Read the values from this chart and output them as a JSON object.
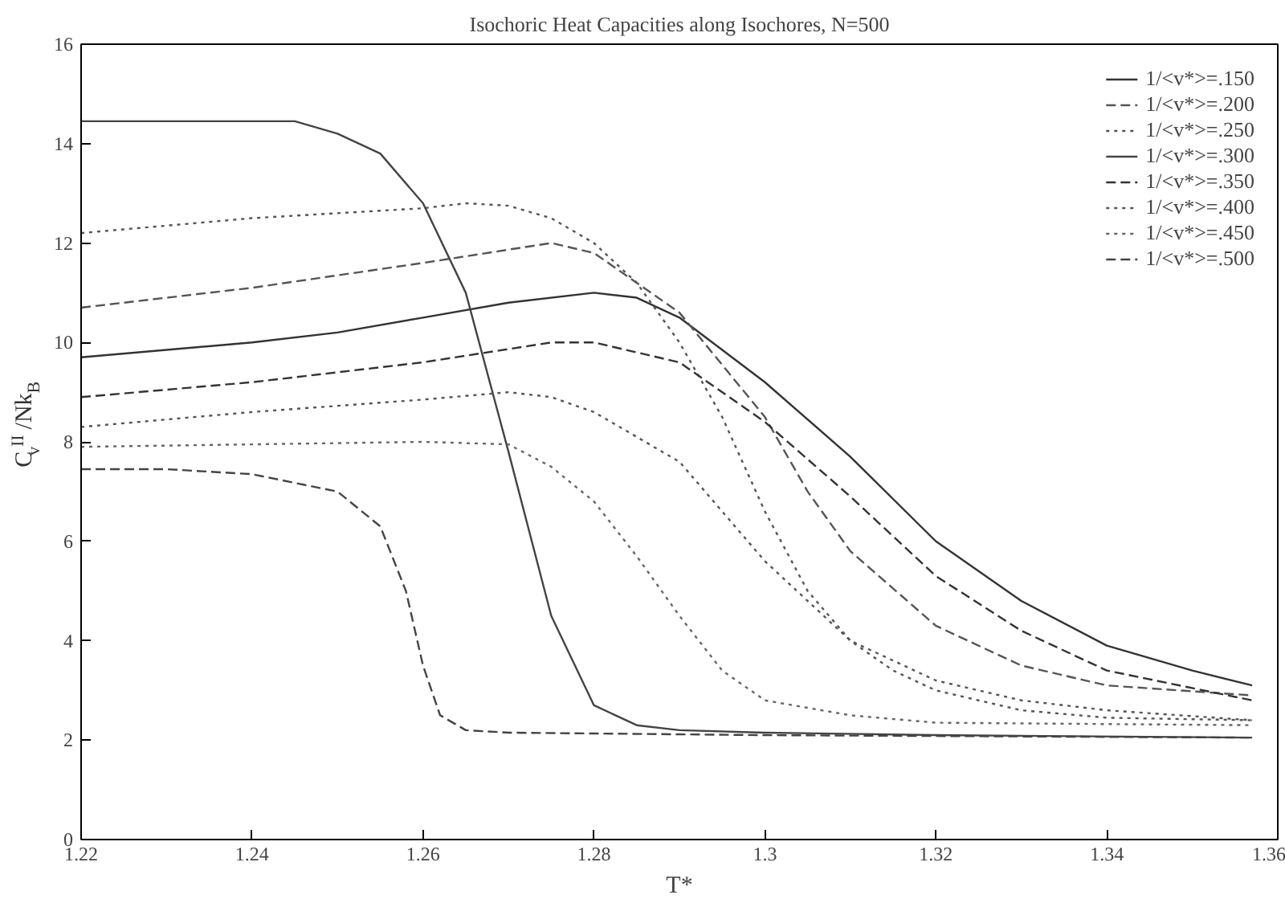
{
  "chart_data": {
    "type": "line",
    "title": "Isochoric Heat Capacities along Isochores, N=500",
    "xlabel": "T*",
    "ylabel": "C$_{v}$$^{II}$/Nk$_{B}$",
    "xlim": [
      1.22,
      1.36
    ],
    "ylim": [
      0,
      16
    ],
    "xticks": [
      1.22,
      1.24,
      1.26,
      1.28,
      1.3,
      1.32,
      1.34,
      1.36
    ],
    "yticks": [
      0,
      2,
      4,
      6,
      8,
      10,
      12,
      14,
      16
    ],
    "grid": false,
    "legend": "top right",
    "marker": "none",
    "series": [
      {
        "name": "1/<v*>=.150",
        "color": "#333333",
        "line_style": "solid",
        "x": [
          1.22,
          1.24,
          1.25,
          1.26,
          1.27,
          1.28,
          1.285,
          1.29,
          1.3,
          1.31,
          1.32,
          1.33,
          1.34,
          1.35,
          1.357
        ],
        "values": [
          9.7,
          10.0,
          10.2,
          10.5,
          10.8,
          11.0,
          10.9,
          10.5,
          9.2,
          7.7,
          6.0,
          4.8,
          3.9,
          3.4,
          3.1
        ]
      },
      {
        "name": "1/<v*>=.200",
        "color": "#555555",
        "line_style": "dashed",
        "x": [
          1.22,
          1.24,
          1.26,
          1.275,
          1.28,
          1.29,
          1.3,
          1.305,
          1.31,
          1.32,
          1.33,
          1.34,
          1.357
        ],
        "values": [
          10.7,
          11.1,
          11.6,
          12.0,
          11.8,
          10.6,
          8.5,
          7.0,
          5.8,
          4.3,
          3.5,
          3.1,
          2.9
        ]
      },
      {
        "name": "1/<v*>=.250",
        "color": "#555555",
        "line_style": "dotted",
        "x": [
          1.22,
          1.24,
          1.26,
          1.265,
          1.27,
          1.275,
          1.28,
          1.285,
          1.29,
          1.295,
          1.3,
          1.305,
          1.31,
          1.315,
          1.32,
          1.33,
          1.34,
          1.357
        ],
        "values": [
          12.2,
          12.5,
          12.7,
          12.8,
          12.75,
          12.5,
          12.0,
          11.2,
          10.0,
          8.5,
          6.6,
          5.0,
          4.0,
          3.4,
          3.0,
          2.6,
          2.45,
          2.4
        ]
      },
      {
        "name": "1/<v*>=.300",
        "color": "#444444",
        "line_style": "solid",
        "x": [
          1.22,
          1.245,
          1.25,
          1.255,
          1.26,
          1.265,
          1.27,
          1.275,
          1.28,
          1.285,
          1.29,
          1.3,
          1.32,
          1.357
        ],
        "values": [
          14.45,
          14.45,
          14.2,
          13.8,
          12.8,
          11.0,
          7.8,
          4.5,
          2.7,
          2.3,
          2.2,
          2.15,
          2.1,
          2.05
        ]
      },
      {
        "name": "1/<v*>=.350",
        "color": "#333333",
        "line_style": "dashed",
        "x": [
          1.22,
          1.24,
          1.26,
          1.275,
          1.28,
          1.29,
          1.3,
          1.31,
          1.32,
          1.33,
          1.34,
          1.357
        ],
        "values": [
          8.9,
          9.2,
          9.6,
          10.0,
          10.0,
          9.6,
          8.4,
          6.9,
          5.3,
          4.2,
          3.4,
          2.8
        ]
      },
      {
        "name": "1/<v*>=.400",
        "color": "#555555",
        "line_style": "dotted",
        "x": [
          1.22,
          1.24,
          1.26,
          1.27,
          1.275,
          1.28,
          1.29,
          1.3,
          1.31,
          1.32,
          1.33,
          1.34,
          1.357
        ],
        "values": [
          8.3,
          8.6,
          8.85,
          9.0,
          8.9,
          8.6,
          7.6,
          5.6,
          4.0,
          3.2,
          2.8,
          2.6,
          2.4
        ]
      },
      {
        "name": "1/<v*>=.450",
        "color": "#666666",
        "line_style": "dotted",
        "x": [
          1.22,
          1.24,
          1.26,
          1.27,
          1.275,
          1.28,
          1.285,
          1.29,
          1.295,
          1.3,
          1.31,
          1.32,
          1.357
        ],
        "values": [
          7.9,
          7.95,
          8.0,
          7.95,
          7.5,
          6.8,
          5.7,
          4.5,
          3.4,
          2.8,
          2.5,
          2.35,
          2.3
        ]
      },
      {
        "name": "1/<v*>=.500",
        "color": "#444444",
        "line_style": "dashed",
        "x": [
          1.22,
          1.23,
          1.24,
          1.25,
          1.255,
          1.258,
          1.26,
          1.262,
          1.265,
          1.27,
          1.3,
          1.357
        ],
        "values": [
          7.45,
          7.45,
          7.35,
          7.0,
          6.3,
          5.0,
          3.5,
          2.5,
          2.2,
          2.15,
          2.1,
          2.05
        ]
      }
    ]
  }
}
